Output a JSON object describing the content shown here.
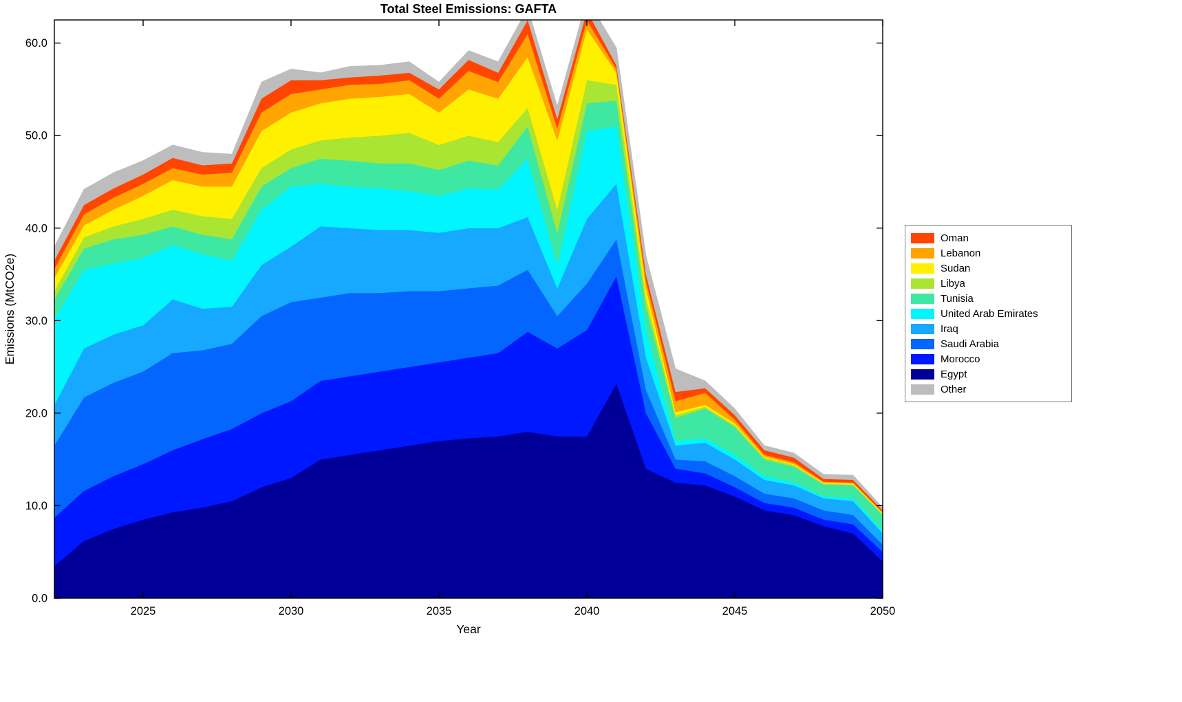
{
  "title": "Total Steel Emissions: GAFTA",
  "xlabel": "Year",
  "ylabel": "Emissions (MtCO2e)",
  "chart_data": {
    "type": "area",
    "stacked": true,
    "grid": false,
    "legend_position": "right-outside",
    "xlim": [
      2022,
      2050
    ],
    "ylim": [
      0,
      62.5
    ],
    "x": [
      2022,
      2023,
      2024,
      2025,
      2026,
      2027,
      2028,
      2029,
      2030,
      2031,
      2032,
      2033,
      2034,
      2035,
      2036,
      2037,
      2038,
      2039,
      2040,
      2041,
      2042,
      2043,
      2044,
      2045,
      2046,
      2047,
      2048,
      2049,
      2050
    ],
    "xtick_values": [
      2025,
      2030,
      2035,
      2040,
      2045,
      2050
    ],
    "xtick_labels": [
      "2025",
      "2030",
      "2035",
      "2040",
      "2045",
      "2050"
    ],
    "ytick_values": [
      0,
      10,
      20,
      30,
      40,
      50,
      60
    ],
    "ytick_labels": [
      "0.0",
      "10.0",
      "20.0",
      "30.0",
      "40.0",
      "50.0",
      "60.0"
    ],
    "series": [
      {
        "name": "Egypt",
        "color": "#000099",
        "values": [
          3.5,
          6.2,
          7.5,
          8.5,
          9.3,
          9.8,
          10.5,
          12.0,
          13.0,
          15.0,
          15.5,
          16.0,
          16.5,
          17.0,
          17.3,
          17.5,
          18.0,
          17.5,
          17.5,
          23.2,
          14.0,
          12.5,
          12.2,
          11.0,
          9.5,
          9.0,
          7.8,
          7.0,
          4.0
        ]
      },
      {
        "name": "Morocco",
        "color": "#0018FF",
        "values": [
          5.2,
          5.4,
          5.7,
          6.0,
          6.7,
          7.4,
          7.8,
          8.0,
          8.3,
          8.5,
          8.5,
          8.5,
          8.5,
          8.5,
          8.7,
          9.0,
          10.8,
          9.5,
          11.5,
          11.6,
          6.0,
          1.5,
          1.3,
          1.0,
          0.8,
          0.8,
          0.7,
          1.0,
          1.0
        ]
      },
      {
        "name": "Saudi Arabia",
        "color": "#0566FF",
        "values": [
          7.8,
          10.1,
          10.1,
          10.0,
          10.5,
          9.6,
          9.2,
          10.5,
          10.7,
          9.0,
          9.0,
          8.5,
          8.2,
          7.7,
          7.5,
          7.3,
          6.7,
          3.5,
          5.0,
          4.0,
          2.5,
          1.0,
          1.3,
          1.2,
          1.0,
          1.0,
          1.0,
          1.0,
          0.8
        ]
      },
      {
        "name": "Iraq",
        "color": "#17A8FF",
        "values": [
          4.4,
          5.3,
          5.2,
          5.0,
          5.8,
          4.5,
          4.0,
          5.5,
          6.0,
          7.7,
          7.0,
          6.8,
          6.6,
          6.3,
          6.5,
          6.2,
          5.7,
          3.0,
          7.0,
          6.0,
          3.5,
          1.5,
          2.0,
          1.8,
          1.5,
          1.4,
          1.3,
          1.5,
          1.2
        ]
      },
      {
        "name": "United Arab Emirates",
        "color": "#00F5FF",
        "values": [
          9.3,
          8.5,
          7.7,
          7.3,
          5.9,
          5.9,
          5.0,
          6.0,
          6.5,
          4.6,
          4.5,
          4.5,
          4.2,
          4.0,
          4.3,
          4.2,
          6.3,
          2.5,
          9.5,
          6.2,
          3.0,
          0.5,
          0.5,
          0.5,
          0.4,
          0.3,
          0.2,
          0.3,
          0.3
        ]
      },
      {
        "name": "Tunisia",
        "color": "#3FE8A2",
        "values": [
          2.1,
          2.3,
          2.6,
          2.5,
          2.0,
          2.1,
          2.3,
          2.5,
          2.0,
          2.7,
          2.8,
          2.7,
          3.0,
          2.8,
          3.0,
          2.6,
          3.5,
          3.5,
          3.0,
          2.8,
          2.5,
          2.5,
          3.2,
          3.0,
          1.8,
          1.7,
          1.3,
          1.4,
          1.7
        ]
      },
      {
        "name": "Libya",
        "color": "#A9E532",
        "values": [
          0.9,
          1.2,
          1.4,
          1.7,
          1.8,
          2.0,
          2.2,
          2.0,
          2.0,
          2.0,
          2.5,
          3.0,
          3.3,
          2.7,
          2.7,
          2.5,
          2.0,
          2.5,
          2.5,
          1.7,
          1.0,
          0.3,
          0.2,
          0.2,
          0.2,
          0.2,
          0.1,
          0.1,
          0.1
        ]
      },
      {
        "name": "Sudan",
        "color": "#FFF000",
        "values": [
          1.4,
          1.3,
          1.8,
          2.5,
          3.2,
          3.2,
          3.5,
          4.0,
          4.0,
          4.0,
          4.2,
          4.2,
          4.2,
          3.5,
          5.0,
          4.7,
          5.5,
          7.5,
          5.5,
          1.3,
          1.0,
          0.3,
          0.2,
          0.2,
          0.1,
          0.1,
          0.1,
          0.1,
          0.1
        ]
      },
      {
        "name": "Lebanon",
        "color": "#FFA400",
        "values": [
          1.0,
          1.2,
          1.3,
          1.3,
          1.3,
          1.3,
          1.5,
          2.0,
          2.0,
          1.5,
          1.5,
          1.4,
          1.5,
          1.5,
          2.0,
          1.8,
          2.5,
          1.3,
          1.0,
          0.4,
          0.8,
          1.2,
          1.3,
          0.4,
          0.2,
          0.2,
          0.1,
          0.1,
          0.1
        ]
      },
      {
        "name": "Oman",
        "color": "#FF4500",
        "values": [
          0.9,
          1.0,
          1.0,
          1.0,
          1.1,
          1.0,
          1.0,
          1.5,
          1.5,
          1.0,
          0.8,
          0.9,
          0.8,
          1.0,
          1.2,
          1.0,
          1.5,
          1.0,
          1.0,
          0.4,
          0.7,
          1.0,
          0.5,
          0.5,
          0.5,
          0.5,
          0.3,
          0.3,
          0.2
        ]
      },
      {
        "name": "Other",
        "color": "#BDBDBD",
        "values": [
          1.5,
          1.7,
          1.7,
          1.5,
          1.4,
          1.4,
          1.0,
          1.8,
          1.2,
          0.8,
          1.2,
          1.1,
          1.2,
          0.8,
          1.0,
          1.2,
          1.3,
          1.4,
          1.3,
          1.9,
          2.0,
          2.5,
          0.8,
          0.7,
          0.5,
          0.5,
          0.5,
          0.5,
          0.3
        ]
      }
    ],
    "legend": [
      "Oman",
      "Lebanon",
      "Sudan",
      "Libya",
      "Tunisia",
      "United Arab Emirates",
      "Iraq",
      "Saudi Arabia",
      "Morocco",
      "Egypt",
      "Other"
    ]
  },
  "colors": {
    "axis": "#000000",
    "background": "#FFFFFF",
    "legend_border": "#7B7B7B"
  }
}
